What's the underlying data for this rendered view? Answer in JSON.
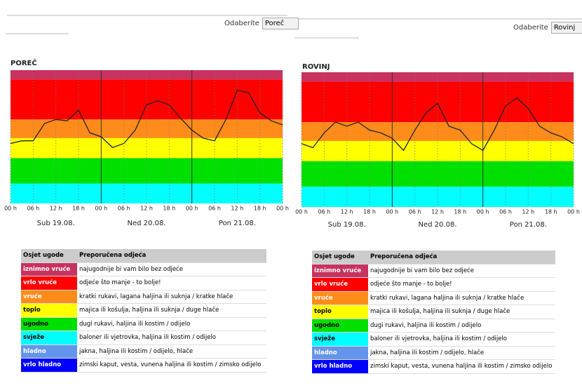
{
  "selectors": [
    {
      "label": "Odaberite",
      "value": "Poreč"
    },
    {
      "label": "Odaberite",
      "value": "Rovinj"
    }
  ],
  "chart_data": [
    {
      "type": "line",
      "title": "POREČ",
      "color": "#222222",
      "xlim": [
        0,
        72
      ],
      "ylim": [
        0,
        100
      ],
      "x": [
        0,
        3,
        6,
        9,
        12,
        15,
        18,
        21,
        24,
        27,
        30,
        33,
        36,
        39,
        42,
        45,
        48,
        51,
        54,
        57,
        60,
        63,
        66,
        69,
        72
      ],
      "values": [
        45,
        47,
        47,
        60,
        63,
        62,
        70,
        53,
        50,
        42,
        45,
        55,
        74,
        77,
        74,
        64,
        55,
        49,
        47,
        63,
        85,
        83,
        68,
        62,
        59
      ],
      "xticks": [
        {
          "value": 0,
          "label": "00 h"
        },
        {
          "value": 6,
          "label": "06 h"
        },
        {
          "value": 12,
          "label": "12 h"
        },
        {
          "value": 18,
          "label": "18 h"
        },
        {
          "value": 24,
          "label": "00 h"
        },
        {
          "value": 30,
          "label": "06 h"
        },
        {
          "value": 36,
          "label": "12 h"
        },
        {
          "value": 42,
          "label": "18 h"
        },
        {
          "value": 48,
          "label": "00 h"
        },
        {
          "value": 54,
          "label": "06 h"
        },
        {
          "value": 60,
          "label": "12 h"
        },
        {
          "value": 66,
          "label": "18 h"
        },
        {
          "value": 72,
          "label": "00 h"
        }
      ],
      "day_labels": [
        "Sub 19.08.",
        "Ned 20.08.",
        "Pon 21.08."
      ]
    },
    {
      "type": "line",
      "title": "ROVINJ",
      "color": "#222222",
      "xlim": [
        0,
        72
      ],
      "ylim": [
        0,
        100
      ],
      "x": [
        0,
        3,
        6,
        9,
        12,
        15,
        18,
        21,
        24,
        27,
        30,
        33,
        36,
        39,
        42,
        45,
        48,
        51,
        54,
        57,
        60,
        63,
        66,
        69,
        72
      ],
      "values": [
        47,
        44,
        55,
        63,
        60,
        63,
        57,
        55,
        51,
        42,
        57,
        70,
        77,
        60,
        57,
        47,
        42,
        57,
        75,
        81,
        73,
        60,
        55,
        52,
        47
      ],
      "xticks": [
        {
          "value": 0,
          "label": "00 h"
        },
        {
          "value": 6,
          "label": "06 h"
        },
        {
          "value": 12,
          "label": "12 h"
        },
        {
          "value": 18,
          "label": "18 h"
        },
        {
          "value": 24,
          "label": "00 h"
        },
        {
          "value": 30,
          "label": "06 h"
        },
        {
          "value": 36,
          "label": "12 h"
        },
        {
          "value": 42,
          "label": "18 h"
        },
        {
          "value": 48,
          "label": "00 h"
        },
        {
          "value": 54,
          "label": "06 h"
        },
        {
          "value": 60,
          "label": "12 h"
        },
        {
          "value": 66,
          "label": "18 h"
        },
        {
          "value": 72,
          "label": "00 h"
        }
      ],
      "day_labels": [
        "Sub 19.08.",
        "Ned 20.08.",
        "Pon 21.08."
      ]
    }
  ],
  "tables": [
    {
      "headers": [
        "Osjet ugode",
        "Preporučena odjeća"
      ],
      "rows": [
        [
          "iznimno vruće",
          "najugodnije bi vam bilo bez odjeće"
        ],
        [
          "vrlo vruće",
          "odjeće što manje - to bolje!"
        ],
        [
          "vruće",
          "kratki rukavi, lagana haljina ili suknja / kratke hlače"
        ],
        [
          "toplo",
          "majica ili košulja, haljina ili suknja / duge hlače"
        ],
        [
          "ugodno",
          "dugi rukavi, haljina ili kostim / odijelo"
        ],
        [
          "svježe",
          "baloner ili vjetrovka, haljina ili kostim / odijelo"
        ],
        [
          "hladno",
          "jakna, haljina ili kostim / odijelo, hlače"
        ],
        [
          "vrlo hladno",
          "zimski kaput, vesta, vunena haljina ili kostim / zimsko odijelo"
        ]
      ]
    },
    {
      "headers": [
        "Osjet ugode",
        "Preporučena odjeća"
      ],
      "rows": [
        [
          "iznimno vruće",
          "najugodnije bi vam bilo bez odjeće"
        ],
        [
          "vrlo vruće",
          "odjeće što manje - to bolje!"
        ],
        [
          "vruće",
          "kratki rukavi, lagana haljina ili suknja / kratke hlače"
        ],
        [
          "toplo",
          "majica ili košulja, haljina ili suknja / duge hlače"
        ],
        [
          "ugodno",
          "dugi rukavi, haljina ili kostim / odijelo"
        ],
        [
          "svježe",
          "baloner ili vjetrovka, haljina ili kostim / odijelo"
        ],
        [
          "hladno",
          "jakna, haljina ili kostim / odijelo, hlače"
        ],
        [
          "vrlo hladno",
          "zimski kaput, vesta, vunena haljina ili kostim / zimsko odijelo"
        ]
      ]
    }
  ]
}
